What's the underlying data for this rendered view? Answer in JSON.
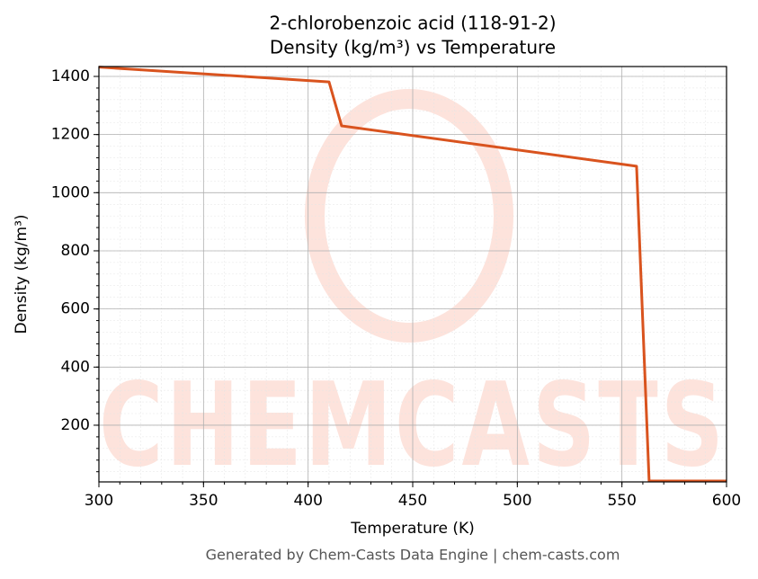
{
  "chart_data": {
    "type": "line",
    "title": "2-chlorobenzoic acid (118-91-2)",
    "subtitle": "Density (kg/m³) vs Temperature",
    "x_label": "Temperature (K)",
    "y_label": "Density (kg/m³)",
    "watermark": "CHEMCASTS",
    "footer": "Generated by Chem-Casts Data Engine | chem-casts.com",
    "x": [
      300,
      410,
      416,
      557,
      563,
      600
    ],
    "series": [
      {
        "name": "Density",
        "color": "#d9531e",
        "values": [
          1432,
          1381,
          1230,
          1091,
          8,
          8
        ]
      }
    ],
    "xlim": [
      300,
      600
    ],
    "xticks": [
      300,
      350,
      400,
      450,
      500,
      550,
      600
    ],
    "ylim": [
      5,
      1434
    ],
    "yticks": [
      200,
      400,
      600,
      800,
      1000,
      1200,
      1400
    ],
    "grid": true,
    "minor_grid": true
  }
}
